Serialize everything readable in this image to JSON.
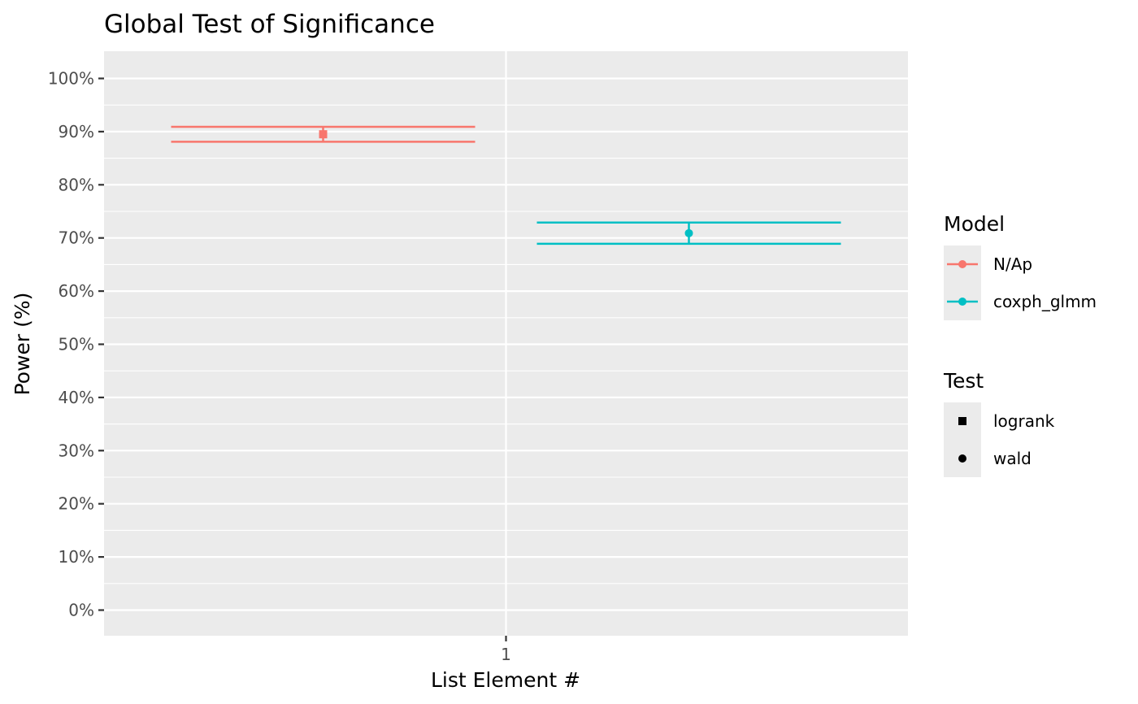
{
  "chart_data": {
    "type": "scatter",
    "title": "Global Test of Significance",
    "xlabel": "List Element #",
    "ylabel": "Power (%)",
    "categories": [
      "1"
    ],
    "y_ticks": [
      "0%",
      "10%",
      "20%",
      "30%",
      "40%",
      "50%",
      "60%",
      "70%",
      "80%",
      "90%",
      "100%"
    ],
    "ylim": [
      -5,
      105
    ],
    "grid": true,
    "legend_position": "right",
    "series": [
      {
        "model": "N/Ap",
        "test": "logrank",
        "color": "#F8766D",
        "shape": "square",
        "x": "1",
        "dodge": "left",
        "y": 89.5,
        "ymin": 88.1,
        "ymax": 90.9
      },
      {
        "model": "coxph_glmm",
        "test": "wald",
        "color": "#00BFC4",
        "shape": "circle",
        "x": "1",
        "dodge": "right",
        "y": 70.9,
        "ymin": 68.9,
        "ymax": 72.9
      }
    ],
    "legends": [
      {
        "title": "Model",
        "entries": [
          {
            "label": "N/Ap",
            "color": "#F8766D",
            "shape": "circle-line"
          },
          {
            "label": "coxph_glmm",
            "color": "#00BFC4",
            "shape": "circle-line"
          }
        ]
      },
      {
        "title": "Test",
        "entries": [
          {
            "label": "logrank",
            "color": "#000000",
            "shape": "square"
          },
          {
            "label": "wald",
            "color": "#000000",
            "shape": "circle"
          }
        ]
      }
    ]
  }
}
